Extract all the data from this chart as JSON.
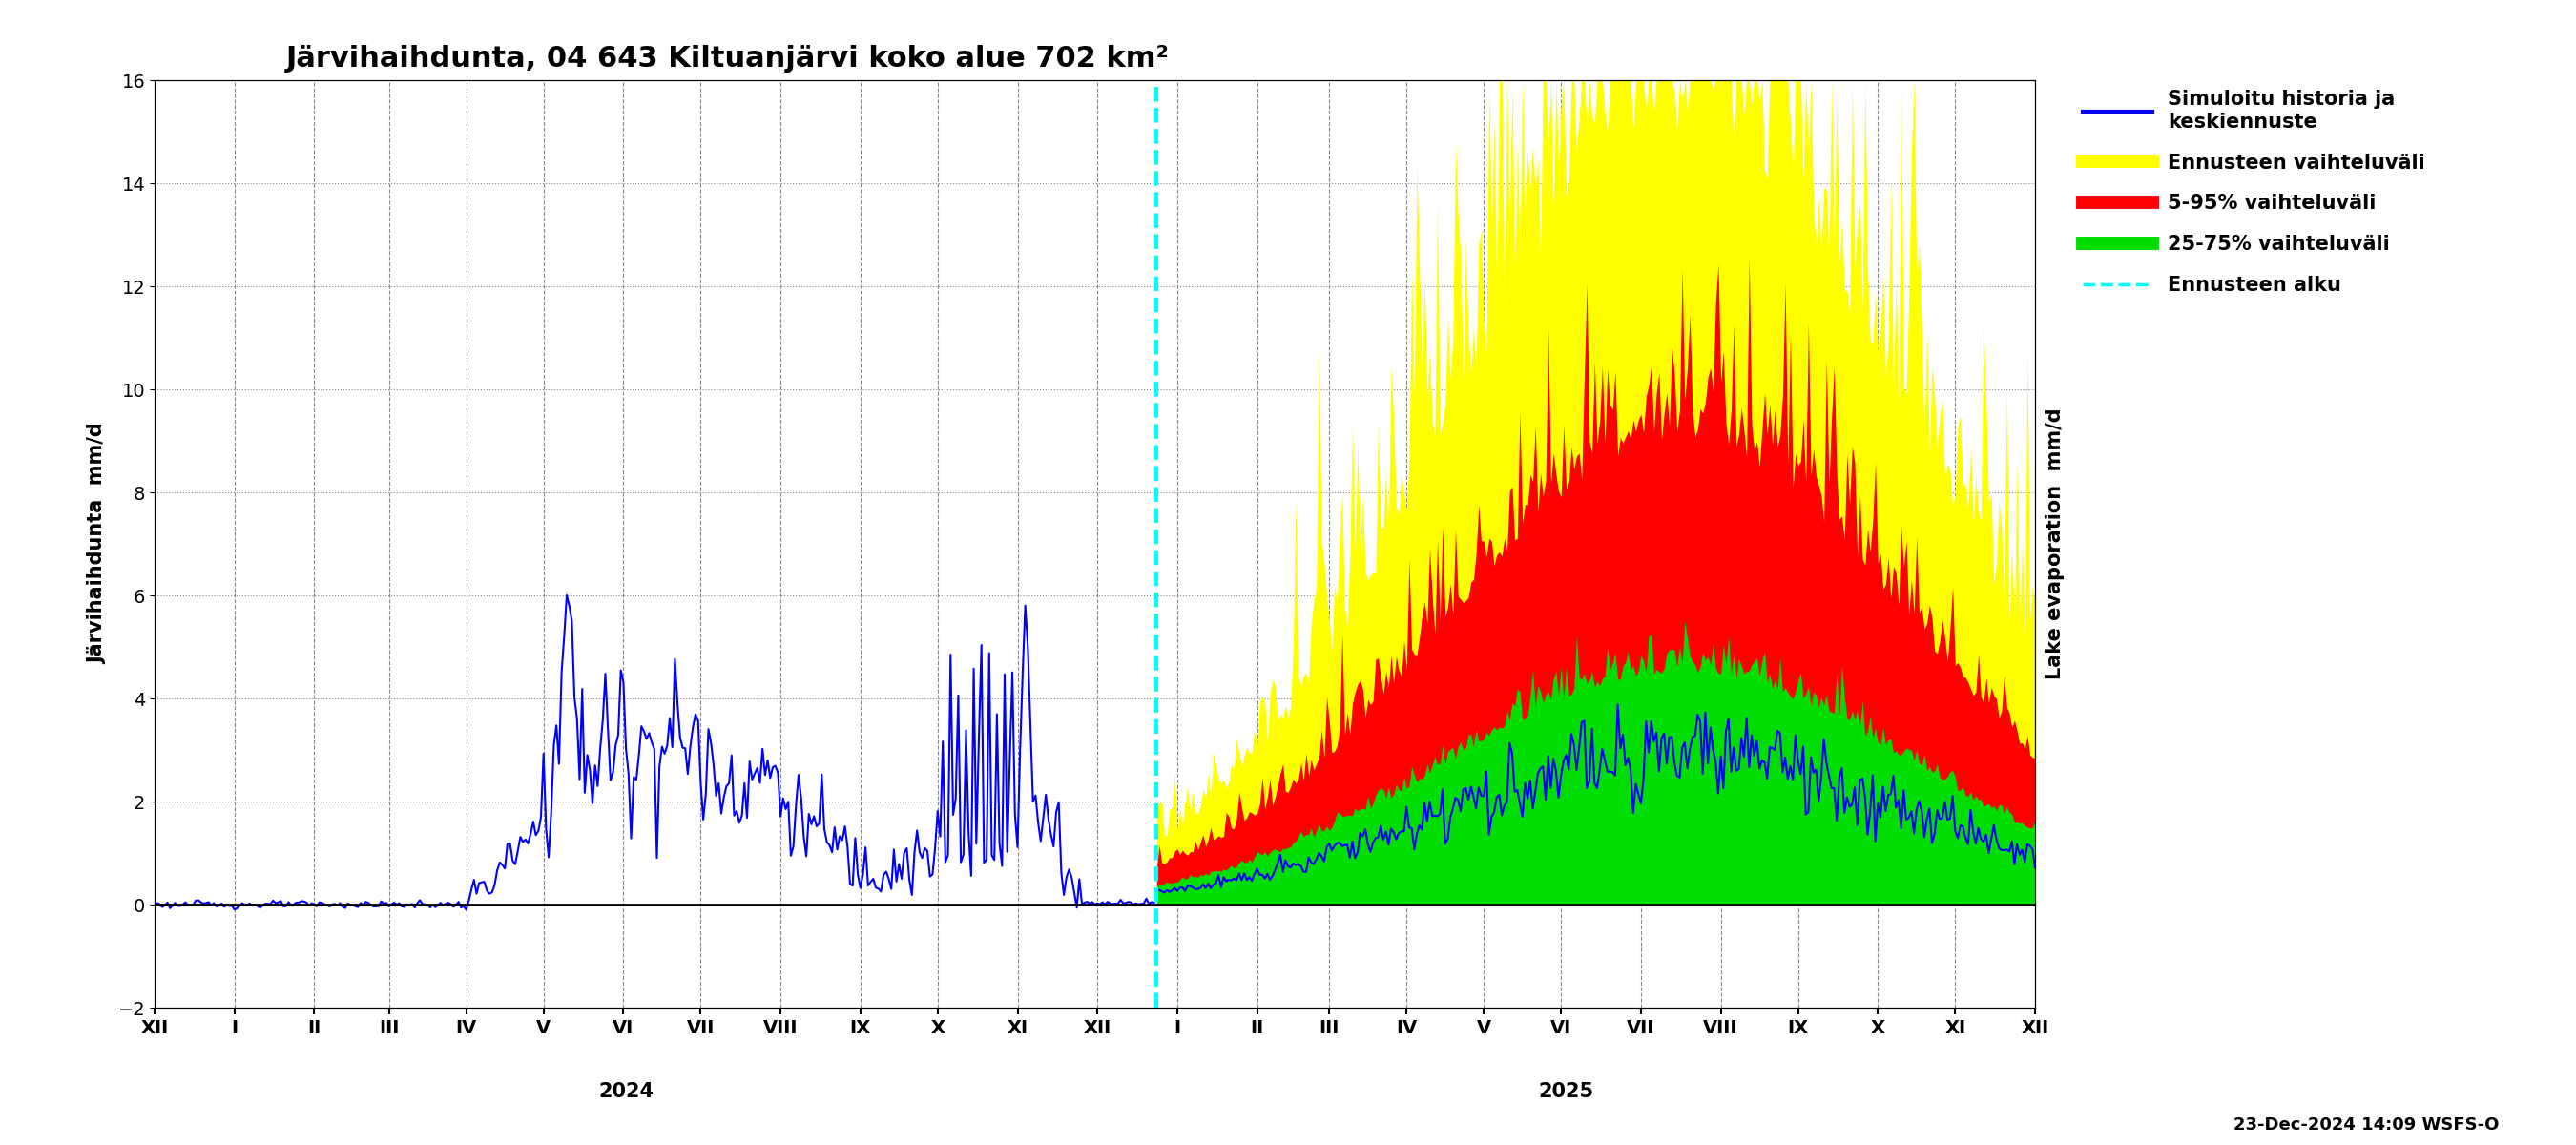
{
  "title": "Järvihaihdunta, 04 643 Kiltuanjärvi koko alue 702 km²",
  "ylabel_left": "Järvihaihdunta  mm/d",
  "ylabel_right": "Lake evaporation  mm/d",
  "ylim": [
    -2,
    16
  ],
  "yticks": [
    -2,
    0,
    2,
    4,
    6,
    8,
    10,
    12,
    14,
    16
  ],
  "legend_entries": [
    {
      "label": "Simuloitu historia ja\nkeskiennuste",
      "color": "#0000ff",
      "lw": 2
    },
    {
      "label": "Ennusteen vaihteluväli",
      "color": "#ffff00",
      "lw": 8
    },
    {
      "label": "5-95% vaihteluväli",
      "color": "#ff0000",
      "lw": 8
    },
    {
      "label": "25-75% vaihteluväli",
      "color": "#00dd00",
      "lw": 8
    },
    {
      "label": "Ennusteen alku",
      "color": "#00ffff",
      "lw": 2,
      "linestyle": "dashed"
    }
  ],
  "colors": {
    "blue": "#0000ff",
    "yellow": "#ffff00",
    "red": "#ff0000",
    "green": "#00dd00",
    "cyan": "#00ffff",
    "background": "#ffffff",
    "grid": "#888888"
  },
  "timestamp": "23-Dec-2024 14:09 WSFS-O",
  "title_fontsize": 22,
  "label_fontsize": 15,
  "tick_fontsize": 14,
  "legend_fontsize": 15
}
